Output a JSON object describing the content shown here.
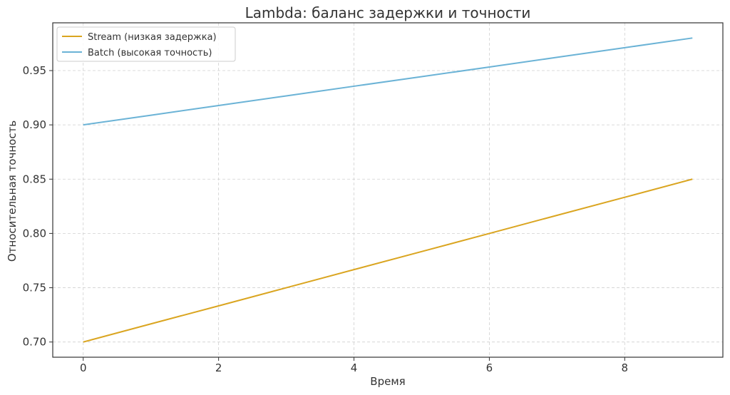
{
  "chart_data": {
    "type": "line",
    "title": "Lambda: баланс задержки и точности",
    "xlabel": "Время",
    "ylabel": "Относительная точность",
    "xlim": [
      -0.45,
      9.45
    ],
    "ylim": [
      0.686,
      0.994
    ],
    "xticks": [
      0,
      2,
      4,
      6,
      8
    ],
    "yticks": [
      0.7,
      0.75,
      0.8,
      0.85,
      0.9,
      0.95
    ],
    "xtick_labels": [
      "0",
      "2",
      "4",
      "6",
      "8"
    ],
    "ytick_labels": [
      "0.70",
      "0.75",
      "0.80",
      "0.85",
      "0.90",
      "0.95"
    ],
    "grid": true,
    "legend_position": "upper-left",
    "series": [
      {
        "name": "Stream (низкая задержка)",
        "color": "#DAA520",
        "x": [
          0,
          1,
          2,
          3,
          4,
          5,
          6,
          7,
          8,
          9
        ],
        "values": [
          0.7,
          0.7167,
          0.7333,
          0.75,
          0.7667,
          0.7833,
          0.8,
          0.8167,
          0.8333,
          0.85
        ]
      },
      {
        "name": "Batch (высокая точность)",
        "color": "#6BB3D6",
        "x": [
          0,
          1,
          2,
          3,
          4,
          5,
          6,
          7,
          8,
          9
        ],
        "values": [
          0.9,
          0.9089,
          0.9178,
          0.9267,
          0.9356,
          0.9444,
          0.9533,
          0.9622,
          0.9711,
          0.98
        ]
      }
    ]
  }
}
